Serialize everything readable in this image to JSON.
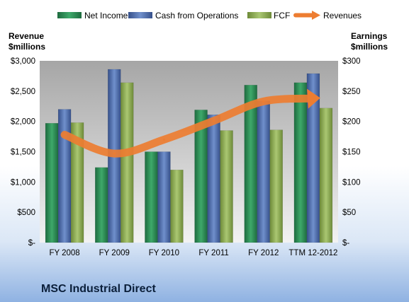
{
  "chart_data": {
    "type": "bar",
    "title": "MSC Industrial Direct",
    "categories": [
      "FY 2008",
      "FY 2009",
      "FY 2010",
      "FY 2011",
      "FY 2012",
      "TTM 12-2012"
    ],
    "left_axis": {
      "label_line1": "Revenue",
      "label_line2": "$millions",
      "ylim": [
        0,
        3000
      ],
      "ticks": [
        "$-",
        "$500",
        "$1,000",
        "$1,500",
        "$2,000",
        "$2,500",
        "$3,000"
      ]
    },
    "right_axis": {
      "label_line1": "Earnings",
      "label_line2": "$millions",
      "ylim": [
        0,
        300
      ],
      "ticks": [
        "$-",
        "$50",
        "$100",
        "$150",
        "$200",
        "$250",
        "$300"
      ]
    },
    "series": [
      {
        "name": "Net Income",
        "axis": "right",
        "type": "bar",
        "color": "#2e8b57",
        "values": [
          197,
          124,
          150,
          219,
          260,
          264
        ]
      },
      {
        "name": "Cash from Operations",
        "axis": "right",
        "type": "bar",
        "color": "#4f6fad",
        "values": [
          220,
          286,
          150,
          211,
          234,
          279
        ]
      },
      {
        "name": "FCF",
        "axis": "right",
        "type": "bar",
        "color": "#8fac56",
        "values": [
          198,
          264,
          120,
          185,
          186,
          222
        ]
      },
      {
        "name": "Revenues",
        "axis": "left",
        "type": "line",
        "color": "#ed7d31",
        "values": [
          1780,
          1470,
          1700,
          2010,
          2330,
          2380
        ]
      }
    ],
    "grid": false,
    "legend": "top"
  }
}
